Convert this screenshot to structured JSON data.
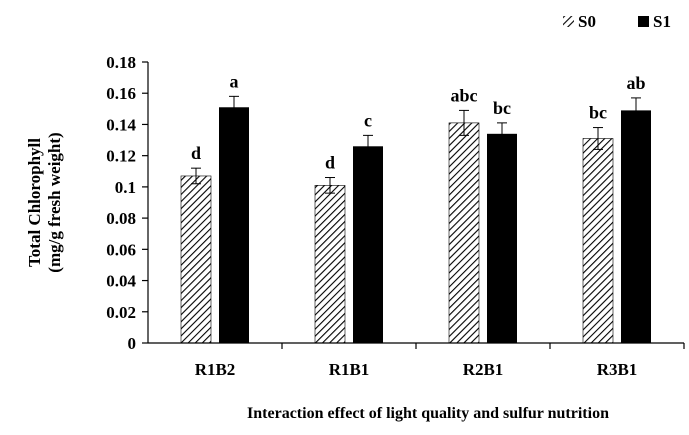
{
  "chart_data": {
    "type": "bar",
    "title": "",
    "xlabel": "Interaction effect of light quality and sulfur nutrition",
    "ylabel_lines": [
      "Total Chlorophyll",
      "(mg/g fresh weight)"
    ],
    "categories": [
      "R1B2",
      "R1B1",
      "R2B1",
      "R3B1"
    ],
    "yticks": [
      "0",
      "0.02",
      "0.04",
      "0.06",
      "0.08",
      "0.1",
      "0.12",
      "0.14",
      "0.16",
      "0.18"
    ],
    "ylim": [
      0,
      0.18
    ],
    "legend_position": "top-right",
    "series": [
      {
        "name": "S0",
        "pattern": "diagonal-hatch",
        "color": "#000000",
        "values": [
          0.107,
          0.101,
          0.141,
          0.131
        ],
        "errors": [
          0.005,
          0.005,
          0.008,
          0.007
        ],
        "letters": [
          "d",
          "d",
          "abc",
          "bc"
        ]
      },
      {
        "name": "S1",
        "pattern": "solid",
        "color": "#000000",
        "values": [
          0.151,
          0.126,
          0.134,
          0.149
        ],
        "errors": [
          0.007,
          0.007,
          0.007,
          0.008
        ],
        "letters": [
          "a",
          "c",
          "bc",
          "ab"
        ]
      }
    ]
  }
}
